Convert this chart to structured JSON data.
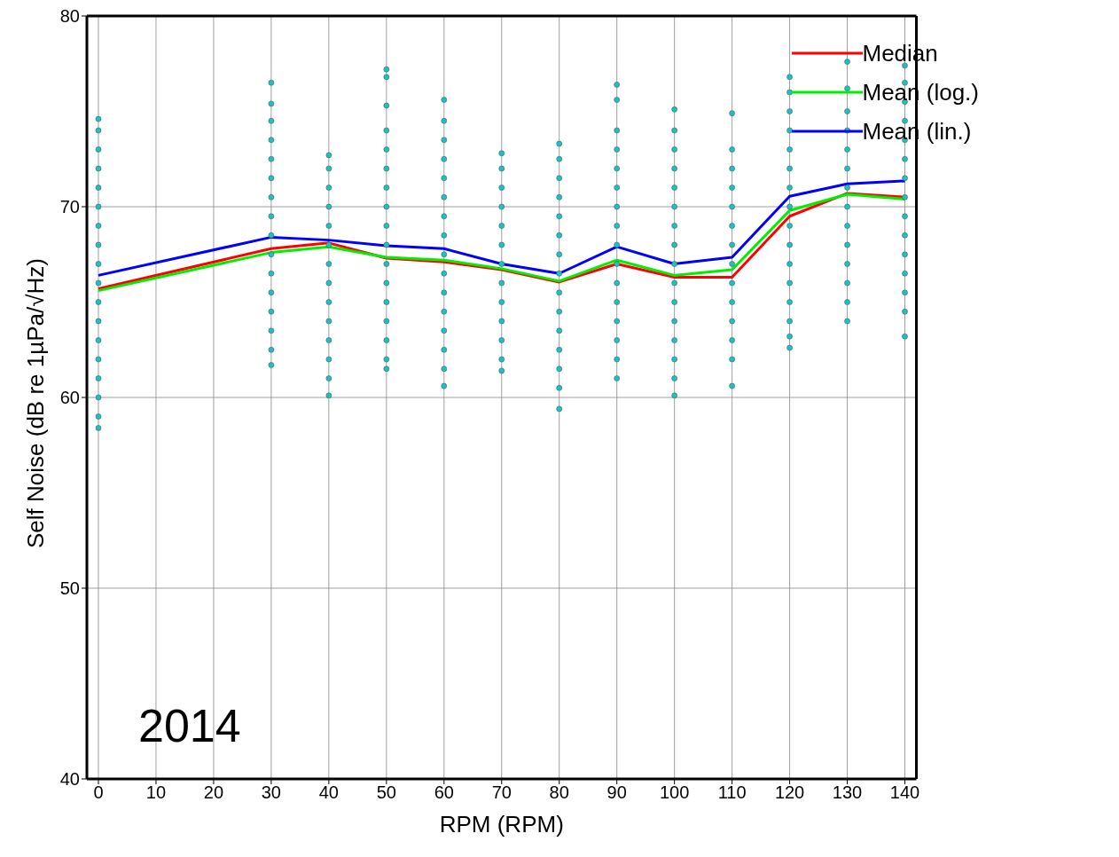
{
  "chart_data": {
    "type": "line",
    "xlabel": "RPM (RPM)",
    "ylabel": "Self Noise (dB re 1µPa/√Hz)",
    "xlim": [
      -2,
      142
    ],
    "xticks": [
      0,
      10,
      20,
      30,
      40,
      50,
      60,
      70,
      80,
      90,
      100,
      110,
      120,
      130,
      140
    ],
    "ylim": [
      40,
      80
    ],
    "yticks": [
      40,
      50,
      60,
      70,
      80
    ],
    "grid": true,
    "legend": "top right",
    "marker": "none",
    "line_style": "solid",
    "annotations": [
      "2014"
    ],
    "x": [
      0,
      30,
      40,
      50,
      60,
      70,
      80,
      90,
      100,
      110,
      120,
      130,
      140
    ],
    "series": [
      {
        "type": "scatter",
        "color": "#20c0c0",
        "marker": "circle",
        "x": [
          0,
          0,
          0,
          0,
          0,
          0,
          0,
          0,
          0,
          0,
          0,
          0,
          0,
          0,
          0,
          0,
          0,
          0,
          30,
          30,
          30,
          30,
          30,
          30,
          30,
          30,
          30,
          30,
          30,
          30,
          30,
          30,
          30,
          30,
          40,
          40,
          40,
          40,
          40,
          40,
          40,
          40,
          40,
          40,
          40,
          40,
          40,
          40,
          50,
          50,
          50,
          50,
          50,
          50,
          50,
          50,
          50,
          50,
          50,
          50,
          50,
          50,
          50,
          50,
          50,
          60,
          60,
          60,
          60,
          60,
          60,
          60,
          60,
          60,
          60,
          60,
          60,
          60,
          60,
          60,
          60,
          70,
          70,
          70,
          70,
          70,
          70,
          70,
          70,
          70,
          70,
          70,
          70,
          70,
          80,
          80,
          80,
          80,
          80,
          80,
          80,
          80,
          80,
          80,
          80,
          80,
          80,
          80,
          80,
          90,
          90,
          90,
          90,
          90,
          90,
          90,
          90,
          90,
          90,
          90,
          90,
          90,
          90,
          90,
          90,
          100,
          100,
          100,
          100,
          100,
          100,
          100,
          100,
          100,
          100,
          100,
          100,
          100,
          100,
          100,
          100,
          110,
          110,
          110,
          110,
          110,
          110,
          110,
          110,
          110,
          110,
          110,
          110,
          110,
          110,
          120,
          120,
          120,
          120,
          120,
          120,
          120,
          120,
          120,
          120,
          120,
          120,
          120,
          120,
          120,
          120,
          130,
          130,
          130,
          130,
          130,
          130,
          130,
          130,
          130,
          130,
          130,
          130,
          130,
          130,
          140,
          140,
          140,
          140,
          140,
          140,
          140,
          140,
          140,
          140,
          140,
          140,
          140,
          140,
          140
        ],
        "values": [
          74.6,
          74,
          73,
          72,
          71,
          70,
          69,
          68,
          67,
          66,
          65,
          64,
          63,
          62,
          61,
          60,
          59,
          58.4,
          76.5,
          75.4,
          74.5,
          73.5,
          72.5,
          71.5,
          70.5,
          69.5,
          68.5,
          67.5,
          66.5,
          65.5,
          64.5,
          63.5,
          62.5,
          61.7,
          72.7,
          72,
          71,
          70,
          69,
          68,
          67,
          66,
          65,
          64,
          63,
          62,
          61,
          60.1,
          77.2,
          76.8,
          75.3,
          74,
          73,
          72,
          71,
          70,
          69,
          68,
          67,
          66,
          65,
          64,
          63,
          62,
          61.5,
          75.6,
          74.5,
          73.5,
          72.5,
          71.5,
          70.5,
          69.5,
          68.5,
          67.5,
          66.5,
          65.5,
          64.5,
          63.5,
          62.5,
          61.5,
          60.6,
          72.8,
          72,
          71,
          70,
          69,
          68,
          67,
          66,
          65,
          64,
          63,
          62,
          61.4,
          73.3,
          72.5,
          71.5,
          70.5,
          69.5,
          68.5,
          67.5,
          66.5,
          65.5,
          64.5,
          63.5,
          62.5,
          61.5,
          60.5,
          59.4,
          76.4,
          75.6,
          74,
          73,
          72,
          71,
          70,
          69,
          68,
          67,
          66,
          65,
          64,
          63,
          62,
          61,
          75.1,
          74,
          73,
          72,
          71,
          70,
          69,
          68,
          67,
          66,
          65,
          64,
          63,
          62,
          61,
          60.1,
          74.9,
          73,
          72,
          71,
          70,
          69,
          68,
          67,
          66,
          65,
          64,
          63,
          62,
          60.6,
          76.8,
          76,
          75,
          74,
          73,
          72,
          71,
          70,
          69,
          68,
          67,
          66,
          65,
          64,
          63.2,
          62.6,
          77.6,
          76.2,
          75,
          74,
          73,
          72,
          71,
          70,
          69,
          68,
          67,
          66,
          65,
          64,
          77.4,
          76.5,
          75.5,
          74.5,
          73.5,
          72.5,
          71.5,
          70.5,
          69.5,
          68.5,
          67.5,
          66.5,
          65.5,
          64.5,
          63.2
        ]
      },
      {
        "name": "Median",
        "color": "#ff0000",
        "values": [
          65.7,
          67.8,
          68.1,
          67.3,
          67.1,
          66.7,
          66.05,
          67.0,
          66.3,
          66.3,
          69.5,
          70.7,
          70.5
        ]
      },
      {
        "name": "Mean (log.)",
        "color": "#00ee00",
        "values": [
          65.6,
          67.6,
          67.9,
          67.35,
          67.2,
          66.75,
          66.1,
          67.2,
          66.4,
          66.7,
          69.8,
          70.65,
          70.4
        ]
      },
      {
        "name": "Mean (lin.)",
        "color": "#0000ff",
        "values": [
          66.4,
          68.4,
          68.25,
          67.95,
          67.8,
          67.0,
          66.5,
          67.9,
          67.0,
          67.35,
          70.55,
          71.2,
          71.35
        ]
      }
    ]
  }
}
